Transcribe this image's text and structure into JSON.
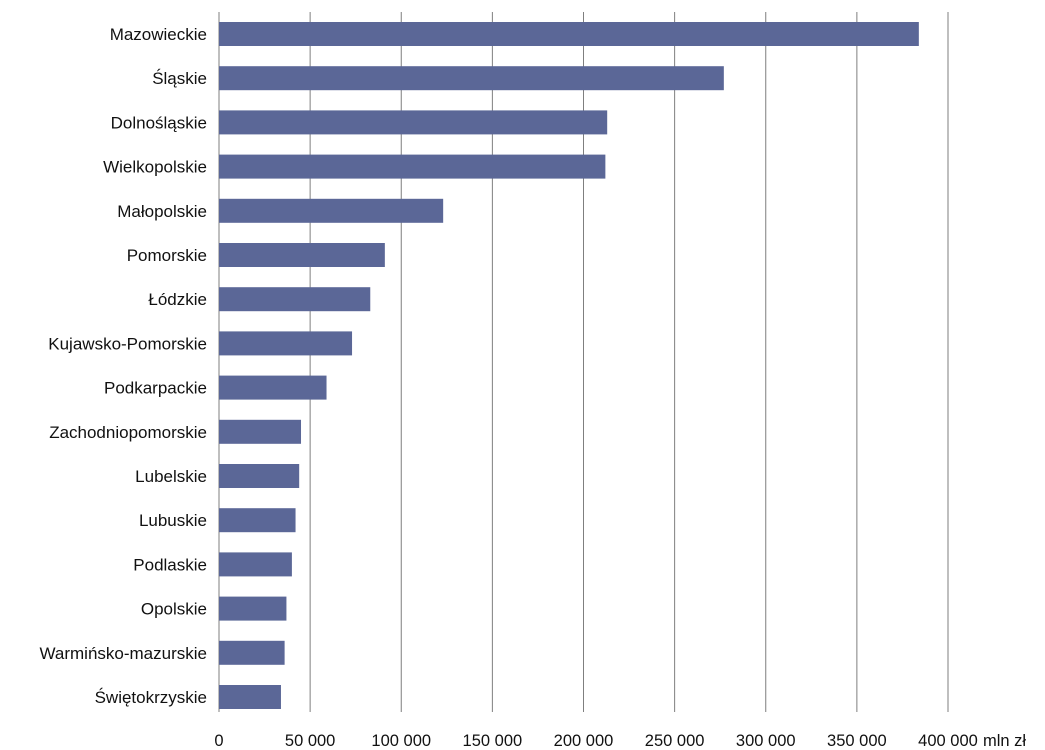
{
  "chart_data": {
    "type": "bar",
    "orientation": "horizontal",
    "categories": [
      "Mazowieckie",
      "Śląskie",
      "Dolnośląskie",
      "Wielkopolskie",
      "Małopolskie",
      "Pomorskie",
      "Łódzkie",
      "Kujawsko-Pomorskie",
      "Podkarpackie",
      "Zachodniopomorskie",
      "Lubelskie",
      "Lubuskie",
      "Podlaskie",
      "Opolskie",
      "Warmińsko-mazurskie",
      "Świętokrzyskie"
    ],
    "values": [
      384000,
      277000,
      213000,
      212000,
      123000,
      91000,
      83000,
      73000,
      59000,
      45000,
      44000,
      42000,
      40000,
      37000,
      36000,
      34000
    ],
    "xlim": [
      0,
      400000
    ],
    "x_ticks": [
      0,
      50000,
      100000,
      150000,
      200000,
      250000,
      300000,
      350000,
      400000
    ],
    "x_tick_labels": [
      "0",
      "50 000",
      "100 000",
      "150 000",
      "200 000",
      "250 000",
      "300 000",
      "350 000",
      "400 000"
    ],
    "x_unit_label": "mln zł",
    "grid": "vertical",
    "bar_color": "#5b6797",
    "grid_color": "#7f7f7f"
  }
}
